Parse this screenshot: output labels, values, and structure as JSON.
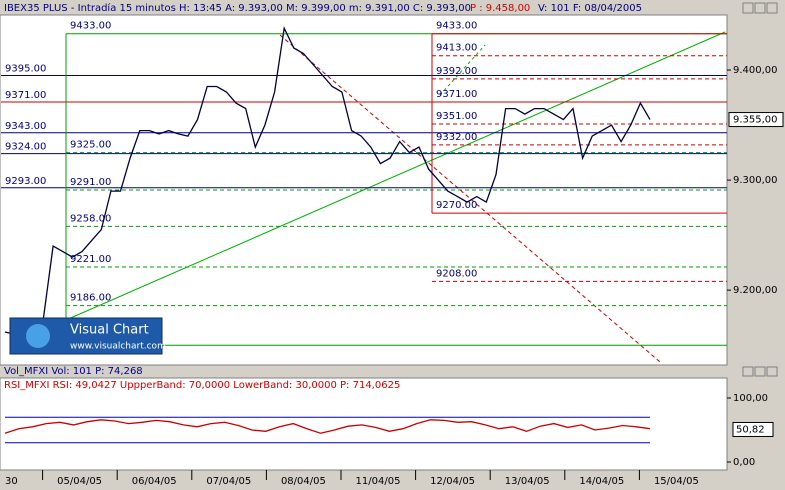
{
  "header": {
    "text": "IBEX35 PLUS - Intradía 15 minutos  H: 13:45  A: 9.393,00  M: 9.399,00  m: 9.391,00  C: 9.393,00",
    "p_text": "P : 9.458,00",
    "tail_text": "V: 101  F: 08/04/2005"
  },
  "logo": {
    "title": "Visual Chart",
    "url": "www.visualchart.com"
  },
  "vol_header": "Vol_MFXI  Vol: 101  P: 74,268",
  "rsi_header": "RSI_MFXI  RSI: 49,0427  UppperBand: 70,0000  LowerBand: 30,0000  P: 714,0625",
  "x_labels": [
    "30",
    "05/04/05",
    "06/04/05",
    "07/04/05",
    "08/04/05",
    "11/04/05",
    "12/04/05",
    "13/04/05",
    "14/04/05",
    "15/04/05"
  ],
  "chart_data": [
    {
      "type": "line",
      "series": [
        {
          "name": "IBEX35 PLUS",
          "color": "#000040",
          "values": [
            9162,
            9160,
            9165,
            9170,
            9175,
            9240,
            9235,
            9230,
            9235,
            9245,
            9255,
            9290,
            9290,
            9320,
            9345,
            9345,
            9342,
            9345,
            9342,
            9340,
            9355,
            9385,
            9385,
            9380,
            9370,
            9365,
            9330,
            9350,
            9380,
            9438,
            9420,
            9415,
            9405,
            9395,
            9385,
            9380,
            9345,
            9340,
            9330,
            9315,
            9320,
            9335,
            9325,
            9330,
            9310,
            9300,
            9290,
            9285,
            9280,
            9285,
            9280,
            9305,
            9365,
            9365,
            9360,
            9365,
            9365,
            9360,
            9355,
            9365,
            9320,
            9340,
            9345,
            9350,
            9335,
            9350,
            9370,
            9355
          ]
        }
      ],
      "ylim": [
        9132,
        9450
      ],
      "yticks": [
        {
          "value": 9200,
          "label": "9.200,00"
        },
        {
          "value": 9300,
          "label": "9.300,00"
        },
        {
          "value": 9400,
          "label": "9.400,00"
        }
      ],
      "current": 9355,
      "current_label": "9.355,00",
      "levels": [
        {
          "value": 9395,
          "label": "9395.00",
          "color": "#000080"
        },
        {
          "value": 9371,
          "label": "9371.00",
          "color": "#cc0000"
        },
        {
          "value": 9343,
          "label": "9343.00",
          "color": "#000080"
        },
        {
          "value": 9324,
          "label": "9324.00",
          "color": "#000080"
        },
        {
          "value": 9293,
          "label": "9293.00",
          "color": "#000080"
        }
      ],
      "box1": {
        "color": "#00a000",
        "top": 9433,
        "top_label": "9433.00",
        "bottom": 9150,
        "levels": [
          9325,
          9291,
          9258,
          9221,
          9186
        ],
        "labels": [
          "9325.00",
          "9291.00",
          "9258.00",
          "9221.00",
          "9186.00"
        ]
      },
      "box2": {
        "color": "#cc0000",
        "top": 9433,
        "top_label": "9433.00",
        "bottom": 9270,
        "bottom_label": "9270.00",
        "levels": [
          9413,
          9392,
          9371,
          9351,
          9332,
          9208
        ],
        "labels": [
          "9413.00",
          "9392.00",
          "9371.00",
          "9351.00",
          "9332.00",
          "9208.00"
        ]
      }
    },
    {
      "type": "line",
      "series": [
        {
          "name": "RSI",
          "color": "#cc0000",
          "values": [
            45,
            52,
            55,
            60,
            62,
            58,
            63,
            66,
            64,
            60,
            62,
            65,
            63,
            58,
            55,
            60,
            62,
            57,
            50,
            48,
            55,
            60,
            52,
            45,
            50,
            56,
            58,
            54,
            48,
            52,
            60,
            66,
            65,
            62,
            63,
            58,
            52,
            55,
            48,
            56,
            60,
            54,
            58,
            50,
            53,
            57,
            55,
            52
          ]
        }
      ],
      "ylim": [
        -12.5,
        131.25
      ],
      "yticks": [
        {
          "value": 100,
          "label": "100,00"
        },
        {
          "value": 0,
          "label": "0,00"
        }
      ],
      "bands": [
        70,
        30
      ],
      "band_color": "#0000c0",
      "current": 50.82,
      "current_label": "50,82"
    }
  ]
}
